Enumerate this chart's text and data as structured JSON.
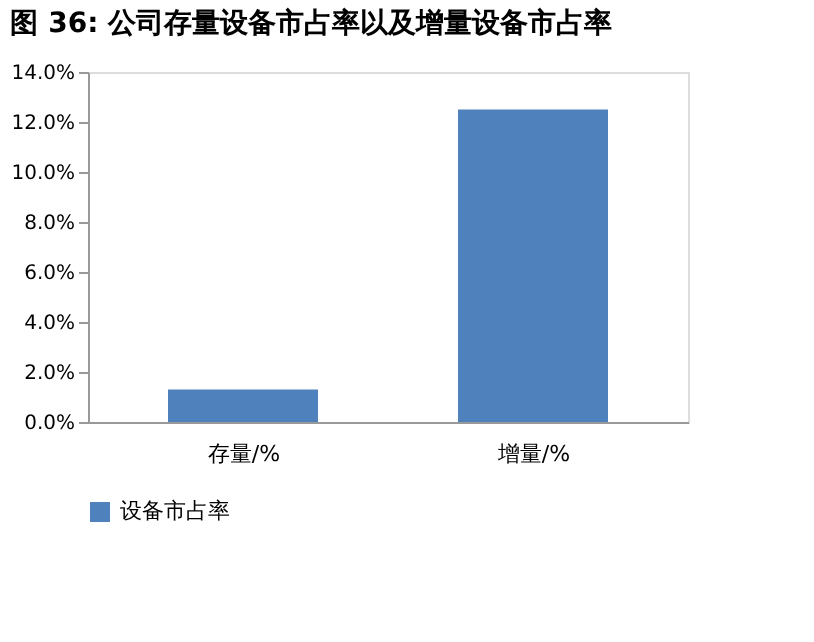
{
  "chart_data": {
    "type": "bar",
    "title": "图 36: 公司存量设备市占率以及增量设备市占率",
    "categories": [
      "存量/%",
      "增量/%"
    ],
    "series": [
      {
        "name": "设备市占率",
        "color": "#4f81bd",
        "values": [
          1.3,
          12.5
        ]
      }
    ],
    "ylim": [
      0,
      14
    ],
    "yticks": [
      {
        "value": 0,
        "label": "0.0%"
      },
      {
        "value": 2,
        "label": "2.0%"
      },
      {
        "value": 4,
        "label": "4.0%"
      },
      {
        "value": 6,
        "label": "6.0%"
      },
      {
        "value": 8,
        "label": "8.0%"
      },
      {
        "value": 10,
        "label": "10.0%"
      },
      {
        "value": 12,
        "label": "12.0%"
      },
      {
        "value": 14,
        "label": "14.0%"
      }
    ],
    "grid": false,
    "legend": "bottom"
  }
}
